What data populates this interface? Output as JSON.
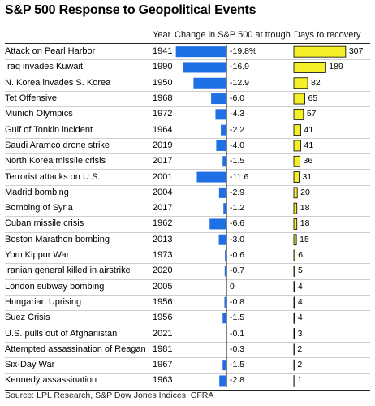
{
  "title": "S&P 500 Response to Geopolitical Events",
  "headers": {
    "year": "Year",
    "change": "Change in S&P 500 at trough",
    "days": "Days to recovery"
  },
  "source": "Source: LPL Research, S&P Dow Jones Indices, CFRA",
  "colors": {
    "change_bar": "#1f6fe5",
    "days_bar": "#f5ef2a",
    "bar_outline": "#000000"
  },
  "chart_data": {
    "type": "table",
    "title": "S&P 500 Response to Geopolitical Events",
    "columns": [
      "Event",
      "Year",
      "Change in S&P 500 at trough",
      "Days to recovery"
    ],
    "rows": [
      {
        "event": "Attack on Pearl Harbor",
        "year": "1941",
        "change": -19.8,
        "change_label": "-19.8%",
        "days": 307,
        "days_label": "307"
      },
      {
        "event": "Iraq invades Kuwait",
        "year": "1990",
        "change": -16.9,
        "change_label": "-16.9",
        "days": 189,
        "days_label": "189"
      },
      {
        "event": "N. Korea invades S. Korea",
        "year": "1950",
        "change": -12.9,
        "change_label": "-12.9",
        "days": 82,
        "days_label": "82"
      },
      {
        "event": "Tet Offensive",
        "year": "1968",
        "change": -6.0,
        "change_label": "-6.0",
        "days": 65,
        "days_label": "65"
      },
      {
        "event": "Munich Olympics",
        "year": "1972",
        "change": -4.3,
        "change_label": "-4.3",
        "days": 57,
        "days_label": "57"
      },
      {
        "event": "Gulf of Tonkin incident",
        "year": "1964",
        "change": -2.2,
        "change_label": "-2.2",
        "days": 41,
        "days_label": "41"
      },
      {
        "event": "Saudi Aramco drone strike",
        "year": "2019",
        "change": -4.0,
        "change_label": "-4.0",
        "days": 41,
        "days_label": "41"
      },
      {
        "event": "North Korea missile crisis",
        "year": "2017",
        "change": -1.5,
        "change_label": "-1.5",
        "days": 36,
        "days_label": "36"
      },
      {
        "event": "Terrorist attacks on U.S.",
        "year": "2001",
        "change": -11.6,
        "change_label": "-11.6",
        "days": 31,
        "days_label": "31"
      },
      {
        "event": "Madrid bombing",
        "year": "2004",
        "change": -2.9,
        "change_label": "-2.9",
        "days": 20,
        "days_label": "20"
      },
      {
        "event": "Bombing of Syria",
        "year": "2017",
        "change": -1.2,
        "change_label": "-1.2",
        "days": 18,
        "days_label": "18"
      },
      {
        "event": "Cuban missile crisis",
        "year": "1962",
        "change": -6.6,
        "change_label": "-6.6",
        "days": 18,
        "days_label": "18"
      },
      {
        "event": "Boston Marathon bombing",
        "year": "2013",
        "change": -3.0,
        "change_label": "-3.0",
        "days": 15,
        "days_label": "15"
      },
      {
        "event": "Yom Kippur War",
        "year": "1973",
        "change": -0.6,
        "change_label": "-0.6",
        "days": 6,
        "days_label": "6"
      },
      {
        "event": "Iranian general killed in airstrike",
        "year": "2020",
        "change": -0.7,
        "change_label": "-0.7",
        "days": 5,
        "days_label": "5"
      },
      {
        "event": "London subway bombing",
        "year": "2005",
        "change": 0,
        "change_label": "0",
        "days": 4,
        "days_label": "4"
      },
      {
        "event": "Hungarian Uprising",
        "year": "1956",
        "change": -0.8,
        "change_label": "-0.8",
        "days": 4,
        "days_label": "4"
      },
      {
        "event": "Suez Crisis",
        "year": "1956",
        "change": -1.5,
        "change_label": "-1.5",
        "days": 4,
        "days_label": "4"
      },
      {
        "event": "U.S. pulls out of Afghanistan",
        "year": "2021",
        "change": -0.1,
        "change_label": "-0.1",
        "days": 3,
        "days_label": "3"
      },
      {
        "event": "Attempted assassination of Reagan",
        "year": "1981",
        "change": -0.3,
        "change_label": "-0.3",
        "days": 2,
        "days_label": "2"
      },
      {
        "event": "Six-Day War",
        "year": "1967",
        "change": -1.5,
        "change_label": "-1.5",
        "days": 2,
        "days_label": "2"
      },
      {
        "event": "Kennedy assassination",
        "year": "1963",
        "change": -2.8,
        "change_label": "-2.8",
        "days": 1,
        "days_label": "1"
      }
    ]
  }
}
